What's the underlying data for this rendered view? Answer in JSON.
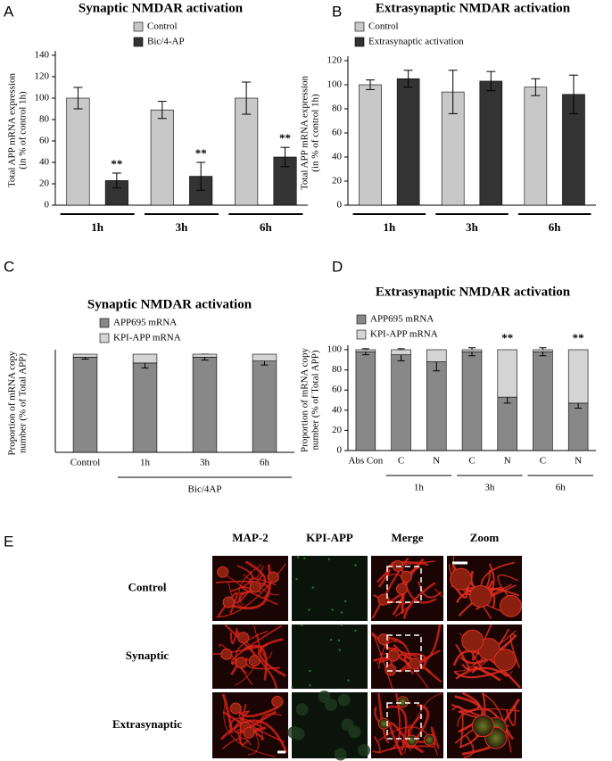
{
  "chart_data": [
    {
      "type": "bar",
      "panel": "A",
      "title": "Synaptic NMDAR activation",
      "ylabel": [
        "Total APP mRNA expression",
        "(in % of control 1h)"
      ],
      "categories": [
        "1h",
        "3h",
        "6h"
      ],
      "series": [
        {
          "name": "Control",
          "color": "#c8c8c8",
          "values": [
            100,
            89,
            100
          ],
          "errors": [
            10,
            8,
            15
          ]
        },
        {
          "name": "Bic/4-AP",
          "color": "#333333",
          "values": [
            23,
            27,
            45
          ],
          "errors": [
            7,
            13,
            9
          ],
          "significance": [
            "**",
            "**",
            "**"
          ]
        }
      ],
      "ylim": [
        0,
        140
      ],
      "yticks": [
        0,
        20,
        40,
        60,
        80,
        100,
        120,
        140
      ]
    },
    {
      "type": "bar",
      "panel": "B",
      "title": "Extrasynaptic NMDAR activation",
      "ylabel": [
        "Total APP mRNA expression",
        "(in % of control 1h)"
      ],
      "categories": [
        "1h",
        "3h",
        "6h"
      ],
      "series": [
        {
          "name": "Control",
          "color": "#c8c8c8",
          "values": [
            100,
            94,
            98
          ],
          "errors": [
            4,
            18,
            7
          ]
        },
        {
          "name": "Extrasynaptic activation",
          "color": "#333333",
          "values": [
            105,
            103,
            92
          ],
          "errors": [
            7,
            8,
            16
          ]
        }
      ],
      "ylim": [
        0,
        120
      ],
      "yticks": [
        0,
        20,
        40,
        60,
        80,
        100,
        120
      ]
    },
    {
      "type": "stacked",
      "panel": "C",
      "title": "Synaptic NMDAR activation",
      "ylabel": [
        "Proportion of mRNA copy",
        "number (% of Total APP)"
      ],
      "categories": [
        "Control",
        "1h",
        "3h",
        "6h"
      ],
      "groups": [
        {
          "label": "Bic/4AP",
          "from": 1,
          "to": 3
        }
      ],
      "series": [
        {
          "name": "APP695 mRNA",
          "color": "#888888",
          "values": [
            97,
            91,
            97,
            93
          ],
          "errors": [
            2,
            5,
            3,
            4
          ]
        },
        {
          "name": "KPI-APP mRNA",
          "color": "#d4d4d4",
          "values": [
            3,
            9,
            3,
            7
          ]
        }
      ],
      "ylim": [
        0,
        100
      ]
    },
    {
      "type": "stacked",
      "panel": "D",
      "title": "Extrasynaptic NMDAR activation",
      "ylabel": [
        "Proportion of mRNA copy",
        "number (% of Total APP)"
      ],
      "categories": [
        "Abs Con",
        "C",
        "N",
        "C",
        "N",
        "C",
        "N"
      ],
      "groups": [
        {
          "label": "1h",
          "from": 1,
          "to": 2
        },
        {
          "label": "3h",
          "from": 3,
          "to": 4
        },
        {
          "label": "6h",
          "from": 5,
          "to": 6
        }
      ],
      "series": [
        {
          "name": "APP695 mRNA",
          "color": "#888888",
          "values": [
            98,
            95,
            88,
            98,
            53,
            98,
            47
          ],
          "errors": [
            3,
            6,
            9,
            4,
            6,
            4,
            5
          ],
          "significance": [
            null,
            null,
            null,
            null,
            "**",
            null,
            "**"
          ]
        },
        {
          "name": "KPI-APP mRNA",
          "color": "#d4d4d4",
          "values": [
            2,
            5,
            12,
            2,
            47,
            2,
            53
          ]
        }
      ],
      "ylim": [
        0,
        100
      ],
      "yticks": [
        0,
        20,
        40,
        60,
        80,
        100
      ]
    }
  ],
  "panel_e": {
    "panel": "E",
    "columns": [
      "MAP-2",
      "KPI-APP",
      "Merge",
      "Zoom"
    ],
    "rows": [
      "Control",
      "Synaptic",
      "Extrasynaptic"
    ]
  }
}
